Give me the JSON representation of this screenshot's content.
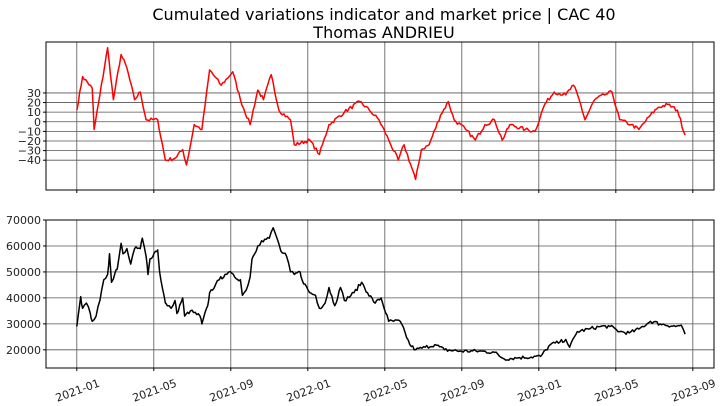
{
  "chart_data": [
    {
      "type": "line",
      "title": "Cumulated variations indicator and market price | CAC 40",
      "subtitle": "Thomas ANDRIEU",
      "x_unit": "months since 2021-01",
      "xlim": [
        -1.6,
        33.1
      ],
      "ylim": [
        -71,
        83
      ],
      "yticks": [
        "30",
        "20",
        "10",
        "0",
        "−10",
        "−20",
        "−30",
        "−40"
      ],
      "ytick_values": [
        30,
        20,
        10,
        0,
        -10,
        -20,
        -30,
        -40
      ],
      "grid": true,
      "color": "#ff0000",
      "series": [
        {
          "name": "indicator",
          "points": [
            [
              0,
              12
            ],
            [
              0.3,
              47
            ],
            [
              0.8,
              35
            ],
            [
              0.9,
              -8
            ],
            [
              1.2,
              28
            ],
            [
              1.6,
              77
            ],
            [
              1.9,
              23
            ],
            [
              2.3,
              70
            ],
            [
              2.6,
              56
            ],
            [
              3.0,
              23
            ],
            [
              3.3,
              31
            ],
            [
              3.6,
              2
            ],
            [
              4.2,
              2
            ],
            [
              4.6,
              -40
            ],
            [
              5.1,
              -38
            ],
            [
              5.5,
              -29
            ],
            [
              5.7,
              -45
            ],
            [
              6.1,
              -3
            ],
            [
              6.5,
              -8
            ],
            [
              6.9,
              54
            ],
            [
              7.5,
              38
            ],
            [
              8.1,
              52
            ],
            [
              8.5,
              23
            ],
            [
              9.0,
              -3
            ],
            [
              9.4,
              33
            ],
            [
              9.7,
              23
            ],
            [
              10.1,
              49
            ],
            [
              10.5,
              12
            ],
            [
              11.1,
              2
            ],
            [
              11.3,
              -24
            ],
            [
              12.1,
              -19
            ],
            [
              12.6,
              -34
            ],
            [
              13.1,
              -3
            ],
            [
              13.9,
              10
            ],
            [
              14.7,
              21
            ],
            [
              15.2,
              12
            ],
            [
              15.7,
              2
            ],
            [
              16.2,
              -19
            ],
            [
              16.7,
              -40
            ],
            [
              17.0,
              -24
            ],
            [
              17.6,
              -60
            ],
            [
              17.9,
              -29
            ],
            [
              18.3,
              -24
            ],
            [
              18.9,
              7
            ],
            [
              19.3,
              21
            ],
            [
              19.6,
              2
            ],
            [
              20.2,
              -8
            ],
            [
              20.7,
              -19
            ],
            [
              21.2,
              -3
            ],
            [
              21.7,
              2
            ],
            [
              22.1,
              -19
            ],
            [
              22.5,
              -3
            ],
            [
              23.3,
              -8
            ],
            [
              23.8,
              -10
            ],
            [
              24.3,
              18
            ],
            [
              24.8,
              31
            ],
            [
              25.4,
              28
            ],
            [
              25.8,
              38
            ],
            [
              26.1,
              23
            ],
            [
              26.4,
              2
            ],
            [
              26.9,
              23
            ],
            [
              27.4,
              28
            ],
            [
              27.8,
              31
            ],
            [
              28.2,
              2
            ],
            [
              28.8,
              -3
            ],
            [
              29.2,
              -8
            ],
            [
              29.8,
              7
            ],
            [
              30.2,
              15
            ],
            [
              30.7,
              18
            ],
            [
              31.2,
              12
            ],
            [
              31.6,
              -14
            ]
          ]
        }
      ]
    },
    {
      "type": "line",
      "x_unit": "months since 2021-01",
      "xlim": [
        -1.6,
        33.1
      ],
      "ylim": [
        13000,
        70000
      ],
      "yticks": [
        "70000",
        "60000",
        "50000",
        "40000",
        "30000",
        "20000"
      ],
      "ytick_values": [
        70000,
        60000,
        50000,
        40000,
        30000,
        20000
      ],
      "xticks": [
        "2021-01",
        "2021-05",
        "2021-09",
        "2022-01",
        "2022-05",
        "2022-09",
        "2023-01",
        "2023-05",
        "2023-09"
      ],
      "xtick_values": [
        0,
        4,
        8,
        12,
        16,
        20,
        24,
        28,
        32
      ],
      "grid": true,
      "color": "#000000",
      "series": [
        {
          "name": "market price",
          "points": [
            [
              0,
              29000
            ],
            [
              0.2,
              40500
            ],
            [
              0.3,
              36000
            ],
            [
              0.5,
              38000
            ],
            [
              0.7,
              34000
            ],
            [
              0.8,
              31000
            ],
            [
              1.0,
              33000
            ],
            [
              1.2,
              39000
            ],
            [
              1.4,
              47000
            ],
            [
              1.6,
              49000
            ],
            [
              1.7,
              57000
            ],
            [
              1.8,
              46000
            ],
            [
              2.0,
              50000
            ],
            [
              2.1,
              51000
            ],
            [
              2.3,
              61000
            ],
            [
              2.4,
              57000
            ],
            [
              2.6,
              59000
            ],
            [
              2.8,
              53000
            ],
            [
              3.0,
              59000
            ],
            [
              3.3,
              59000
            ],
            [
              3.4,
              63000
            ],
            [
              3.6,
              56000
            ],
            [
              3.7,
              49000
            ],
            [
              3.8,
              55000
            ],
            [
              4.1,
              58000
            ],
            [
              4.2,
              58500
            ],
            [
              4.3,
              50000
            ],
            [
              4.6,
              38000
            ],
            [
              4.7,
              37000
            ],
            [
              4.9,
              36000
            ],
            [
              5.1,
              39000
            ],
            [
              5.2,
              34000
            ],
            [
              5.5,
              40000
            ],
            [
              5.6,
              33000
            ],
            [
              5.9,
              35000
            ],
            [
              6.4,
              33000
            ],
            [
              6.5,
              30000
            ],
            [
              6.8,
              37000
            ],
            [
              6.9,
              42000
            ],
            [
              7.2,
              45000
            ],
            [
              7.4,
              47000
            ],
            [
              7.7,
              49000
            ],
            [
              7.9,
              50000
            ],
            [
              8.2,
              48000
            ],
            [
              8.5,
              47000
            ],
            [
              8.6,
              41000
            ],
            [
              8.8,
              43000
            ],
            [
              9.0,
              48000
            ],
            [
              9.1,
              55000
            ],
            [
              9.4,
              60000
            ],
            [
              9.6,
              62000
            ],
            [
              10.0,
              63000
            ],
            [
              10.2,
              67000
            ],
            [
              10.4,
              63000
            ],
            [
              10.6,
              58000
            ],
            [
              10.9,
              56000
            ],
            [
              11.1,
              50000
            ],
            [
              11.3,
              49000
            ],
            [
              11.6,
              50000
            ],
            [
              11.7,
              47000
            ],
            [
              12.1,
              42000
            ],
            [
              12.4,
              41000
            ],
            [
              12.6,
              36000
            ],
            [
              12.9,
              38000
            ],
            [
              13.1,
              44000
            ],
            [
              13.4,
              37000
            ],
            [
              13.7,
              44000
            ],
            [
              13.9,
              39000
            ],
            [
              14.4,
              42000
            ],
            [
              14.8,
              46000
            ],
            [
              15.1,
              42000
            ],
            [
              15.5,
              38000
            ],
            [
              15.8,
              40000
            ],
            [
              16.2,
              31000
            ],
            [
              16.8,
              31000
            ],
            [
              17.3,
              22000
            ],
            [
              17.6,
              20000
            ],
            [
              18.1,
              21000
            ],
            [
              18.6,
              22000
            ],
            [
              19.1,
              20000
            ],
            [
              19.9,
              19500
            ],
            [
              20.9,
              19500
            ],
            [
              21.7,
              19000
            ],
            [
              22.2,
              16500
            ],
            [
              23.0,
              17000
            ],
            [
              24.1,
              17500
            ],
            [
              24.6,
              22000
            ],
            [
              25.1,
              23000
            ],
            [
              25.4,
              24000
            ],
            [
              25.6,
              21000
            ],
            [
              26.0,
              27000
            ],
            [
              26.6,
              28000
            ],
            [
              27.2,
              29000
            ],
            [
              27.7,
              29000
            ],
            [
              28.2,
              27000
            ],
            [
              28.7,
              26500
            ],
            [
              29.2,
              28000
            ],
            [
              29.8,
              31000
            ],
            [
              30.3,
              30000
            ],
            [
              31.1,
              29000
            ],
            [
              31.4,
              29500
            ],
            [
              31.6,
              26000
            ]
          ]
        }
      ]
    }
  ]
}
